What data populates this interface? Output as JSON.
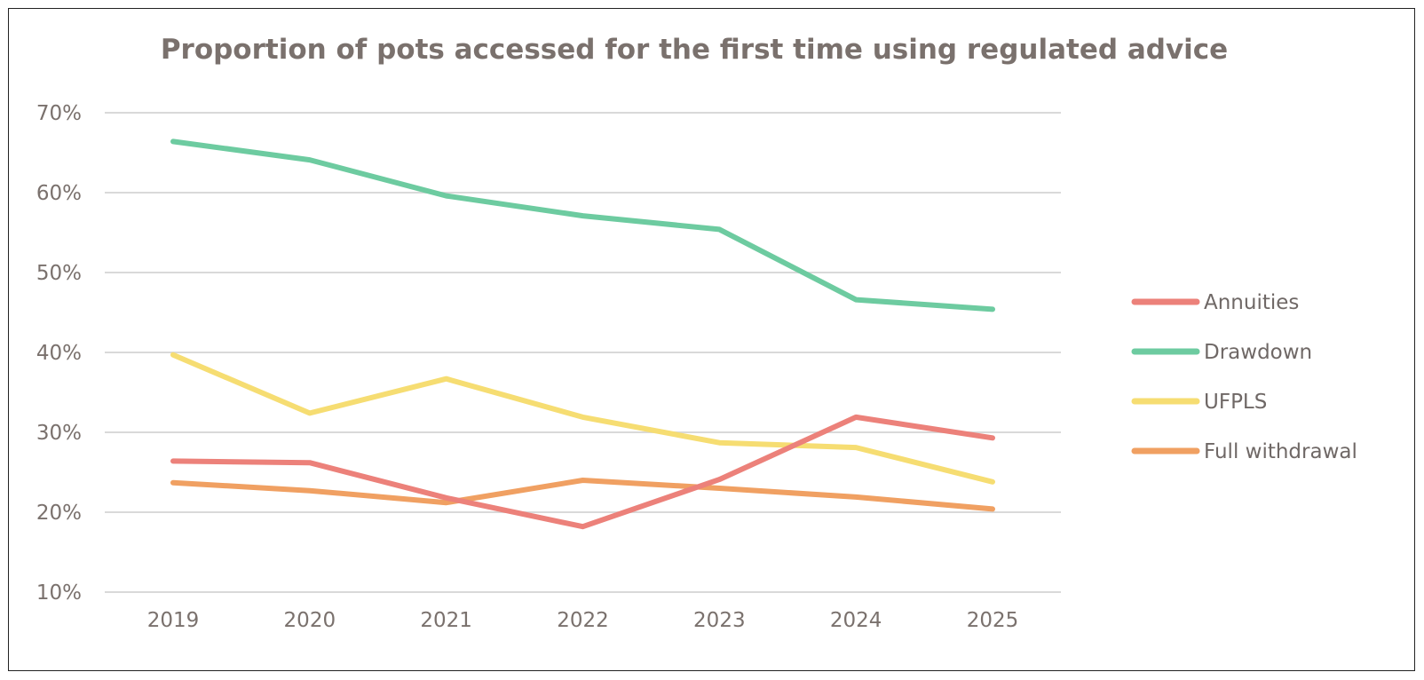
{
  "chart_data": {
    "type": "line",
    "title": "Proportion of pots accessed for the first time using regulated advice",
    "xlabel": "",
    "ylabel": "",
    "categories": [
      "2019",
      "2020",
      "2021",
      "2022",
      "2023",
      "2024",
      "2025"
    ],
    "ylim": [
      10,
      70
    ],
    "yticks": [
      "10%",
      "20%",
      "30%",
      "40%",
      "50%",
      "60%",
      "70%"
    ],
    "ytick_values": [
      10,
      20,
      30,
      40,
      50,
      60,
      70
    ],
    "grid": true,
    "legend_position": "right",
    "series": [
      {
        "name": "Annuities",
        "color": "#ec817a",
        "values": [
          26.4,
          26.2,
          21.8,
          18.2,
          24.1,
          31.9,
          29.3
        ]
      },
      {
        "name": "Drawdown",
        "color": "#6dcba0",
        "values": [
          66.4,
          64.1,
          59.6,
          57.1,
          55.4,
          46.6,
          45.4
        ]
      },
      {
        "name": "UFPLS",
        "color": "#f6dd72",
        "values": [
          39.7,
          32.4,
          36.7,
          31.9,
          28.7,
          28.1,
          23.8
        ]
      },
      {
        "name": "Full withdrawal",
        "color": "#f0a062",
        "values": [
          23.7,
          22.7,
          21.2,
          24.0,
          23.0,
          21.9,
          20.4
        ]
      }
    ]
  }
}
